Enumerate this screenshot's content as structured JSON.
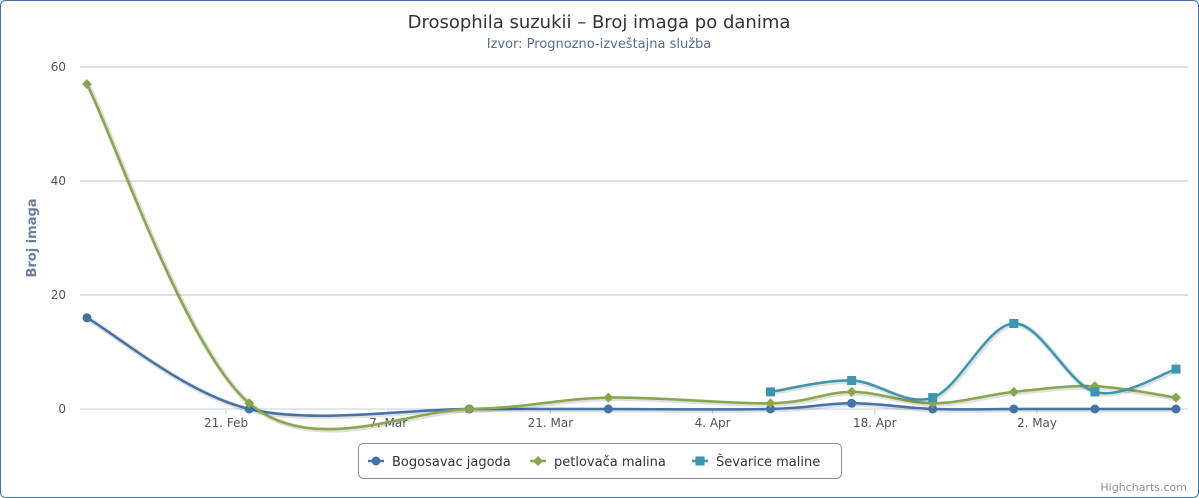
{
  "chart_data": {
    "type": "line",
    "title": "Drosophila suzukii – Broj imaga po danima",
    "subtitle": "Izvor: Prognozno-izveštajna služba",
    "ylabel": "Broj imaga",
    "xlabel": "",
    "ylim": [
      0,
      60
    ],
    "yticks": [
      0,
      20,
      40,
      60
    ],
    "xlim": [
      "2018-02-09",
      "2018-05-14"
    ],
    "xticks": [
      {
        "date": "2018-02-21",
        "label": "21. Feb"
      },
      {
        "date": "2018-03-07",
        "label": "7. Mar"
      },
      {
        "date": "2018-03-21",
        "label": "21. Mar"
      },
      {
        "date": "2018-04-04",
        "label": "4. Apr"
      },
      {
        "date": "2018-04-18",
        "label": "18. Apr"
      },
      {
        "date": "2018-05-02",
        "label": "2. May"
      }
    ],
    "grid": true,
    "legend_position": "bottom-center",
    "series": [
      {
        "name": "Bogosavac jagoda",
        "color": "#4572a7",
        "marker": "circle",
        "points": [
          {
            "x": "2018-02-09",
            "y": 16
          },
          {
            "x": "2018-02-23",
            "y": 0
          },
          {
            "x": "2018-03-14",
            "y": 0
          },
          {
            "x": "2018-03-26",
            "y": 0
          },
          {
            "x": "2018-04-09",
            "y": 0
          },
          {
            "x": "2018-04-16",
            "y": 1
          },
          {
            "x": "2018-04-23",
            "y": 0
          },
          {
            "x": "2018-04-30",
            "y": 0
          },
          {
            "x": "2018-05-07",
            "y": 0
          },
          {
            "x": "2018-05-14",
            "y": 0
          }
        ]
      },
      {
        "name": "petlovača malina",
        "color": "#89a54e",
        "marker": "diamond",
        "points": [
          {
            "x": "2018-02-09",
            "y": 57
          },
          {
            "x": "2018-02-23",
            "y": 1
          },
          {
            "x": "2018-03-14",
            "y": 0
          },
          {
            "x": "2018-03-26",
            "y": 2
          },
          {
            "x": "2018-04-09",
            "y": 1
          },
          {
            "x": "2018-04-16",
            "y": 3
          },
          {
            "x": "2018-04-23",
            "y": 1
          },
          {
            "x": "2018-04-30",
            "y": 3
          },
          {
            "x": "2018-05-07",
            "y": 4
          },
          {
            "x": "2018-05-14",
            "y": 2
          }
        ]
      },
      {
        "name": "Ševarice maline",
        "color": "#3d96ae",
        "marker": "square",
        "points": [
          {
            "x": "2018-04-09",
            "y": 3
          },
          {
            "x": "2018-04-16",
            "y": 5
          },
          {
            "x": "2018-04-23",
            "y": 2
          },
          {
            "x": "2018-04-30",
            "y": 15
          },
          {
            "x": "2018-05-07",
            "y": 3
          },
          {
            "x": "2018-05-14",
            "y": 7
          }
        ]
      }
    ]
  },
  "credits": "Highcharts.com"
}
